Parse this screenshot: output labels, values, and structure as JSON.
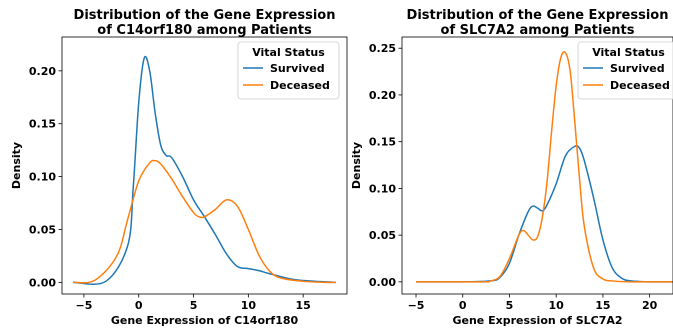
{
  "chart_data": [
    {
      "type": "line",
      "title": [
        "Distribution of the Gene Expression",
        "of C14orf180 among Patients"
      ],
      "xlabel": "Gene Expression of C14orf180",
      "ylabel": "Density",
      "xlim": [
        -7,
        19
      ],
      "ylim": [
        -0.011,
        0.232
      ],
      "xticks": [
        -5,
        0,
        5,
        10,
        15
      ],
      "yticks": [
        0.0,
        0.05,
        0.1,
        0.15,
        0.2
      ],
      "ytick_labels": [
        "0.00",
        "0.05",
        "0.10",
        "0.15",
        "0.20"
      ],
      "grid": false,
      "legend": {
        "title": "Vital Status",
        "placement": "top-right"
      },
      "series": [
        {
          "name": "Survived",
          "color": "#1f77b4",
          "x": [
            -6,
            -3,
            -1,
            -0.5,
            0,
            0.5,
            1,
            1.5,
            2,
            2.5,
            3,
            4,
            5,
            6,
            7,
            8,
            9,
            10,
            11,
            12,
            14,
            16,
            18
          ],
          "y": [
            0,
            0.001,
            0.035,
            0.09,
            0.17,
            0.212,
            0.2,
            0.16,
            0.13,
            0.12,
            0.118,
            0.1,
            0.078,
            0.062,
            0.045,
            0.027,
            0.015,
            0.013,
            0.011,
            0.008,
            0.003,
            0.001,
            0
          ]
        },
        {
          "name": "Deceased",
          "color": "#ff7f0e",
          "x": [
            -6,
            -4,
            -2,
            -1,
            0,
            1,
            1.5,
            2,
            3,
            4,
            5,
            5.5,
            6,
            7,
            8,
            9,
            10,
            11,
            12,
            13,
            15,
            17,
            18
          ],
          "y": [
            0,
            0.002,
            0.025,
            0.06,
            0.096,
            0.113,
            0.115,
            0.112,
            0.098,
            0.081,
            0.066,
            0.062,
            0.062,
            0.069,
            0.078,
            0.072,
            0.05,
            0.025,
            0.01,
            0.004,
            0.001,
            0,
            0
          ]
        }
      ]
    },
    {
      "type": "line",
      "title": [
        "Distribution of the Gene Expression",
        "of SLC7A2 among Patients"
      ],
      "xlabel": "Gene Expression of SLC7A2",
      "ylabel": "Density",
      "xlim": [
        -6.5,
        22.5
      ],
      "ylim": [
        -0.013,
        0.262
      ],
      "xticks": [
        -5,
        0,
        5,
        10,
        15,
        20
      ],
      "yticks": [
        0.0,
        0.05,
        0.1,
        0.15,
        0.2,
        0.25
      ],
      "ytick_labels": [
        "0.00",
        "0.05",
        "0.10",
        "0.15",
        "0.20",
        "0.25"
      ],
      "grid": false,
      "legend": {
        "title": "Vital Status",
        "placement": "top-right"
      },
      "series": [
        {
          "name": "Survived",
          "color": "#1f77b4",
          "x": [
            -5,
            0,
            3,
            4,
            5,
            6,
            7,
            7.5,
            8,
            8.5,
            9,
            10,
            11,
            12,
            12.5,
            13,
            14,
            15,
            16,
            17,
            18,
            20,
            23
          ],
          "y": [
            0,
            0,
            0.001,
            0.005,
            0.02,
            0.05,
            0.075,
            0.081,
            0.079,
            0.076,
            0.082,
            0.105,
            0.135,
            0.145,
            0.143,
            0.13,
            0.09,
            0.045,
            0.015,
            0.004,
            0.001,
            0,
            0
          ]
        },
        {
          "name": "Deceased",
          "color": "#ff7f0e",
          "x": [
            -5,
            2,
            3,
            4,
            5,
            6,
            6.5,
            7,
            7.5,
            8,
            8.5,
            9,
            9.5,
            10,
            10.5,
            11,
            11.5,
            12,
            12.5,
            13,
            14,
            15,
            16,
            18,
            23
          ],
          "y": [
            0,
            0,
            0.001,
            0.006,
            0.025,
            0.05,
            0.055,
            0.05,
            0.045,
            0.048,
            0.068,
            0.105,
            0.16,
            0.21,
            0.24,
            0.245,
            0.225,
            0.17,
            0.11,
            0.06,
            0.015,
            0.003,
            0.001,
            0,
            0
          ]
        }
      ]
    }
  ]
}
